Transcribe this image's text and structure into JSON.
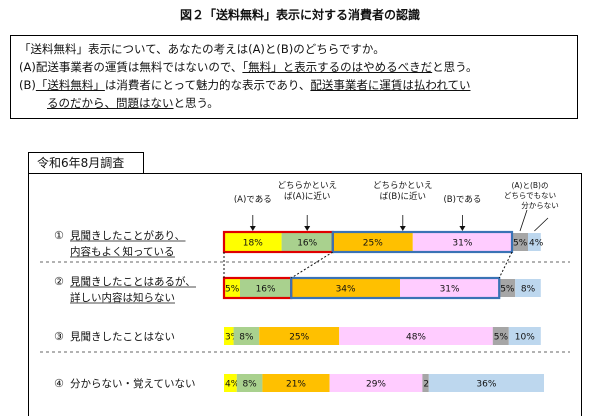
{
  "title": "図２「送料無料」表示に対する消費者の認識",
  "question": {
    "line1": "「送料無料」表示について、あなたの考えは(A)と(B)のどちらですか。",
    "a_pre": "(A)配送事業者の運賃は無料ではないので、",
    "a_ul1": "「無料」と表示するのはやめるべきだ",
    "a_post": "と思う。",
    "b_pre": "(B)",
    "b_ul1": "「送料無料」",
    "b_mid": "は消費者にとって魅力的な表示であり、",
    "b_ul2": "配送事業者に運賃は払われてい",
    "b_line2_ul": "るのだから、問題はない",
    "b_line2_post": "と思う。"
  },
  "year_label": "令和6年8月調査",
  "chart_data": {
    "type": "bar",
    "stacked": true,
    "orientation": "horizontal",
    "series": [
      {
        "name": "(A)である",
        "color": "#ffff00"
      },
      {
        "name": "どちらかといえば(A)に近い",
        "color": "#a9d18e"
      },
      {
        "name": "どちらかといえば(B)に近い",
        "color": "#ffc000"
      },
      {
        "name": "(B)である",
        "color": "#ffccff"
      },
      {
        "name": "(A)と(B)のどちらでもない",
        "color": "#a6a6a6"
      },
      {
        "name": "分からない",
        "color": "#bdd7ee"
      }
    ],
    "legend_lines": [
      [
        "(A)である"
      ],
      [
        "どちらかといえ",
        "ば(A)に近い"
      ],
      [
        "どちらかといえ",
        "ば(B)に近い"
      ],
      [
        "(B)である"
      ],
      [
        "(A)と(B)の",
        "どちらでもない",
        "分からない"
      ]
    ],
    "categories": [
      {
        "num": "①",
        "label_lines": [
          "見聞きしたことがあり、",
          "内容もよく知っている"
        ],
        "values": [
          18,
          16,
          25,
          31,
          5,
          4
        ]
      },
      {
        "num": "②",
        "label_lines": [
          "見聞きしたことはあるが、",
          "詳しい内容は知らない"
        ],
        "values": [
          5,
          16,
          34,
          31,
          5,
          8
        ]
      },
      {
        "num": "③",
        "label_lines": [
          "見聞きしたことはない"
        ],
        "values": [
          3,
          8,
          25,
          48,
          5,
          10
        ]
      },
      {
        "num": "④",
        "label_lines": [
          "分からない・覚えていない"
        ],
        "values": [
          4,
          8,
          21,
          29,
          2,
          36
        ]
      }
    ],
    "unit": "%",
    "xlim": [
      0,
      100
    ]
  }
}
